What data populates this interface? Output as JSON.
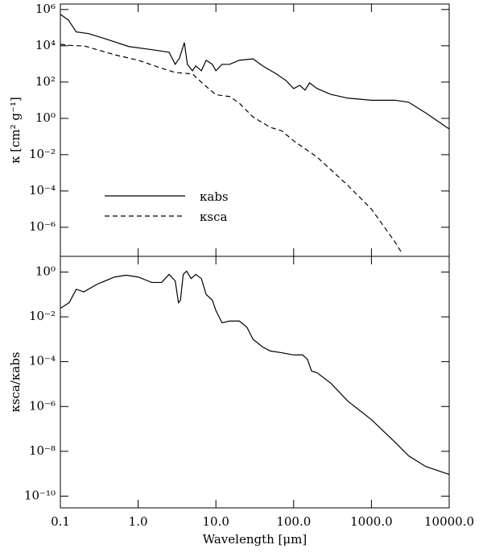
{
  "chart_data": [
    {
      "type": "line",
      "xscale": "log",
      "yscale": "log",
      "ylabel": "κ [cm² g⁻¹]",
      "xlim": [
        0.1,
        10000
      ],
      "ylim": [
        2.5e-08,
        2000000.0
      ],
      "yticks": [
        {
          "value": 1000000.0,
          "label": "10⁶"
        },
        {
          "value": 10000.0,
          "label": "10⁴"
        },
        {
          "value": 100,
          "label": "10²"
        },
        {
          "value": 1,
          "label": "10⁰"
        },
        {
          "value": 0.01,
          "label": "10⁻²"
        },
        {
          "value": 0.0001,
          "label": "10⁻⁴"
        },
        {
          "value": 1e-06,
          "label": "10⁻⁶"
        }
      ],
      "legend": "lower left",
      "series": [
        {
          "name": "κabs",
          "color": "#000000",
          "linestyle": "solid",
          "x": [
            0.1,
            0.127,
            0.16,
            0.23,
            0.37,
            0.76,
            1.55,
            2.5,
            3.0,
            3.4,
            3.93,
            4.3,
            5,
            5.5,
            6.5,
            7.5,
            9,
            10,
            12,
            15,
            20,
            30,
            40,
            60,
            80,
            100,
            120,
            140,
            160,
            200,
            300,
            500,
            1000,
            2000,
            3000,
            5000,
            10000
          ],
          "values": [
            540000.0,
            260000.0,
            58000.0,
            47000.0,
            25000.0,
            9100.0,
            6000.0,
            4400.0,
            950,
            2100,
            15000.0,
            950,
            420,
            780,
            420,
            1600,
            950,
            420,
            950,
            950,
            1600,
            1900,
            780,
            280,
            120,
            44,
            66,
            36,
            91,
            44,
            21,
            13,
            10,
            10,
            7.8,
            2.0,
            0.26
          ]
        },
        {
          "name": "κsca",
          "color": "#000000",
          "linestyle": "dashed",
          "x": [
            0.1,
            0.15,
            0.2,
            0.3,
            0.5,
            1,
            2,
            3,
            5,
            7,
            10,
            15,
            20,
            30,
            50,
            70,
            100,
            200,
            500,
            1000,
            2000,
            2500
          ],
          "values": [
            12000.0,
            10000.0,
            10000.0,
            6000.0,
            3200.0,
            1600,
            580,
            340,
            280,
            74,
            20,
            16,
            6.9,
            1.2,
            0.32,
            0.21,
            0.058,
            0.0074,
            0.0002,
            1e-05,
            1.6e-07,
            3.4e-08
          ]
        }
      ]
    },
    {
      "type": "line",
      "xscale": "log",
      "yscale": "log",
      "xlabel": "Wavelength [μm]",
      "ylabel": "κsca/κabs",
      "xlim": [
        0.1,
        10000
      ],
      "ylim": [
        3e-11,
        5
      ],
      "xticks": [
        {
          "value": 0.1,
          "label": "0.1"
        },
        {
          "value": 1,
          "label": "1.0"
        },
        {
          "value": 10,
          "label": "10.0"
        },
        {
          "value": 100,
          "label": "100.0"
        },
        {
          "value": 1000,
          "label": "1000.0"
        },
        {
          "value": 10000,
          "label": "10000.0"
        }
      ],
      "yticks": [
        {
          "value": 1,
          "label": "10⁰"
        },
        {
          "value": 0.01,
          "label": "10⁻²"
        },
        {
          "value": 0.0001,
          "label": "10⁻⁴"
        },
        {
          "value": 1e-06,
          "label": "10⁻⁶"
        },
        {
          "value": 1e-08,
          "label": "10⁻⁸"
        },
        {
          "value": 1e-10,
          "label": "10⁻¹⁰"
        }
      ],
      "series": [
        {
          "color": "#000000",
          "linestyle": "solid",
          "x": [
            0.1,
            0.13,
            0.16,
            0.2,
            0.3,
            0.5,
            0.7,
            1,
            1.5,
            2,
            2.5,
            3,
            3.3,
            3.5,
            3.8,
            4.2,
            4.8,
            5.5,
            6.5,
            7.5,
            9,
            10,
            12,
            15,
            20,
            25,
            30,
            40,
            50,
            70,
            100,
            130,
            150,
            170,
            200,
            300,
            500,
            1000,
            2000,
            3000,
            5000,
            10000
          ],
          "values": [
            0.024,
            0.043,
            0.17,
            0.13,
            0.29,
            0.6,
            0.72,
            0.6,
            0.34,
            0.34,
            0.78,
            0.4,
            0.043,
            0.055,
            0.78,
            1.1,
            0.51,
            0.78,
            0.51,
            0.1,
            0.055,
            0.019,
            0.0054,
            0.0065,
            0.0065,
            0.0035,
            0.001,
            0.00045,
            0.0003,
            0.00025,
            0.0002,
            0.0002,
            0.00013,
            3.8e-05,
            3.2e-05,
            1.1e-05,
            1.7e-06,
            2.6e-07,
            2.6e-08,
            6.3e-09,
            2.1e-09,
            9.3e-10
          ]
        }
      ]
    }
  ]
}
